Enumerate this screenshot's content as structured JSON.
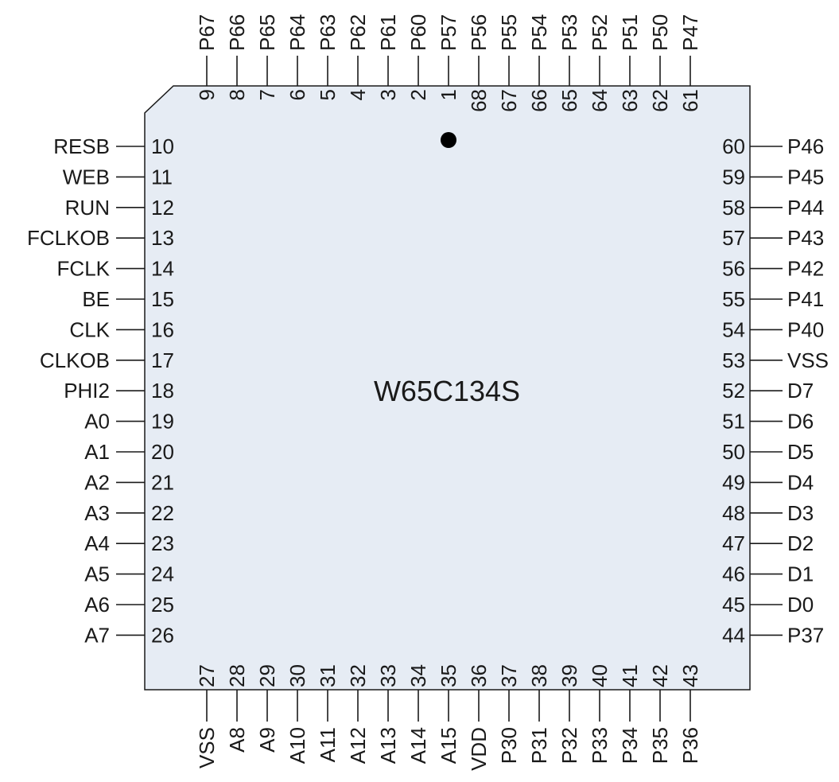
{
  "chip": {
    "name": "W65C134S",
    "body_color": "#e6ecf4",
    "line_color": "#1a1a1a",
    "pin1_marker": "filled-dot"
  },
  "pins": {
    "top": [
      {
        "num": "9",
        "label": "P67"
      },
      {
        "num": "8",
        "label": "P66"
      },
      {
        "num": "7",
        "label": "P65"
      },
      {
        "num": "6",
        "label": "P64"
      },
      {
        "num": "5",
        "label": "P63"
      },
      {
        "num": "4",
        "label": "P62"
      },
      {
        "num": "3",
        "label": "P61"
      },
      {
        "num": "2",
        "label": "P60"
      },
      {
        "num": "1",
        "label": "P57"
      },
      {
        "num": "68",
        "label": "P56"
      },
      {
        "num": "67",
        "label": "P55"
      },
      {
        "num": "66",
        "label": "P54"
      },
      {
        "num": "65",
        "label": "P53"
      },
      {
        "num": "64",
        "label": "P52"
      },
      {
        "num": "63",
        "label": "P51"
      },
      {
        "num": "62",
        "label": "P50"
      },
      {
        "num": "61",
        "label": "P47"
      }
    ],
    "left": [
      {
        "num": "10",
        "label": "RESB"
      },
      {
        "num": "11",
        "label": "WEB"
      },
      {
        "num": "12",
        "label": "RUN"
      },
      {
        "num": "13",
        "label": "FCLKOB"
      },
      {
        "num": "14",
        "label": "FCLK"
      },
      {
        "num": "15",
        "label": "BE"
      },
      {
        "num": "16",
        "label": "CLK"
      },
      {
        "num": "17",
        "label": "CLKOB"
      },
      {
        "num": "18",
        "label": "PHI2"
      },
      {
        "num": "19",
        "label": "A0"
      },
      {
        "num": "20",
        "label": "A1"
      },
      {
        "num": "21",
        "label": "A2"
      },
      {
        "num": "22",
        "label": "A3"
      },
      {
        "num": "23",
        "label": "A4"
      },
      {
        "num": "24",
        "label": "A5"
      },
      {
        "num": "25",
        "label": "A6"
      },
      {
        "num": "26",
        "label": "A7"
      }
    ],
    "right": [
      {
        "num": "60",
        "label": "P46"
      },
      {
        "num": "59",
        "label": "P45"
      },
      {
        "num": "58",
        "label": "P44"
      },
      {
        "num": "57",
        "label": "P43"
      },
      {
        "num": "56",
        "label": "P42"
      },
      {
        "num": "55",
        "label": "P41"
      },
      {
        "num": "54",
        "label": "P40"
      },
      {
        "num": "53",
        "label": "VSS"
      },
      {
        "num": "52",
        "label": "D7"
      },
      {
        "num": "51",
        "label": "D6"
      },
      {
        "num": "50",
        "label": "D5"
      },
      {
        "num": "49",
        "label": "D4"
      },
      {
        "num": "48",
        "label": "D3"
      },
      {
        "num": "47",
        "label": "D2"
      },
      {
        "num": "46",
        "label": "D1"
      },
      {
        "num": "45",
        "label": "D0"
      },
      {
        "num": "44",
        "label": "P37"
      }
    ],
    "bottom": [
      {
        "num": "27",
        "label": "VSS"
      },
      {
        "num": "28",
        "label": "A8"
      },
      {
        "num": "29",
        "label": "A9"
      },
      {
        "num": "30",
        "label": "A10"
      },
      {
        "num": "31",
        "label": "A11"
      },
      {
        "num": "32",
        "label": "A12"
      },
      {
        "num": "33",
        "label": "A13"
      },
      {
        "num": "34",
        "label": "A14"
      },
      {
        "num": "35",
        "label": "A15"
      },
      {
        "num": "36",
        "label": "VDD"
      },
      {
        "num": "37",
        "label": "P30"
      },
      {
        "num": "38",
        "label": "P31"
      },
      {
        "num": "39",
        "label": "P32"
      },
      {
        "num": "40",
        "label": "P33"
      },
      {
        "num": "41",
        "label": "P34"
      },
      {
        "num": "42",
        "label": "P35"
      },
      {
        "num": "43",
        "label": "P36"
      }
    ]
  }
}
